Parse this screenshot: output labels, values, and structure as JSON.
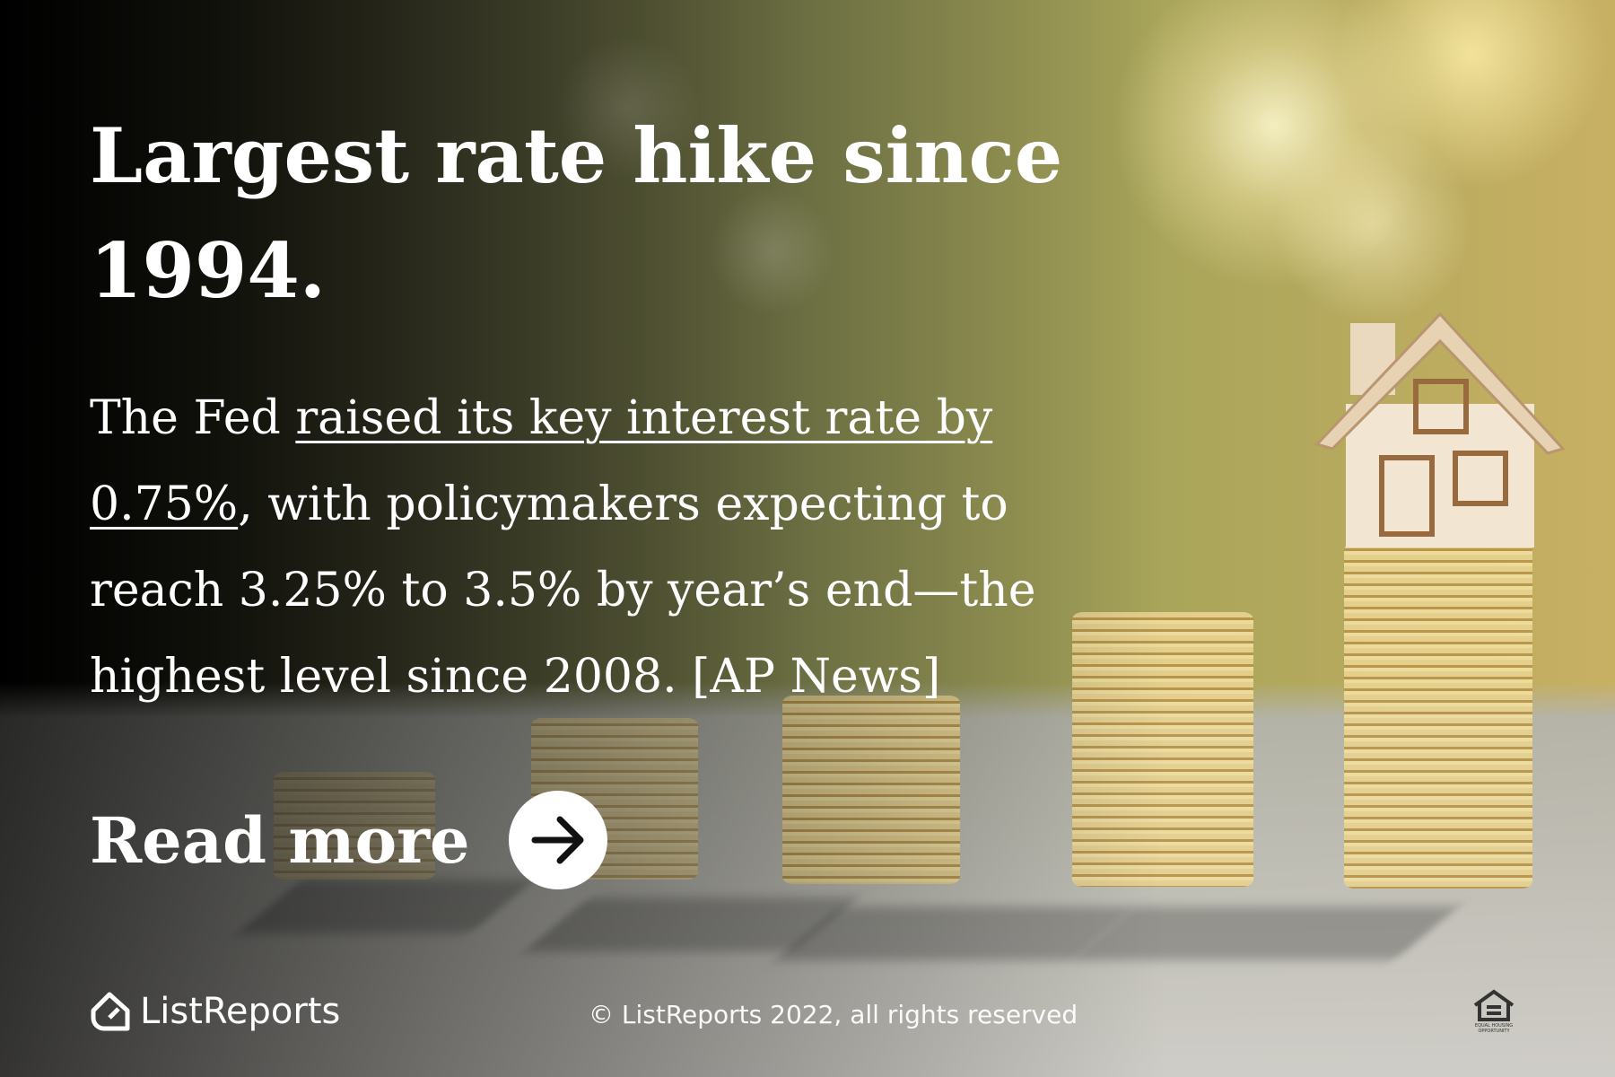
{
  "headline": "Largest rate hike since 1994.",
  "body": {
    "before": "The Fed ",
    "link": "raised its key interest rate by 0.75%",
    "after": ", with policymakers expecting to reach 3.25% to 3.5% by year’s end—the highest level since 2008. [AP News]"
  },
  "cta": "Read more",
  "footer": {
    "brand": "ListReports",
    "copyright": "© ListReports 2022, all rights reserved",
    "eho": "EQUAL HOUSING OPPORTUNITY"
  }
}
